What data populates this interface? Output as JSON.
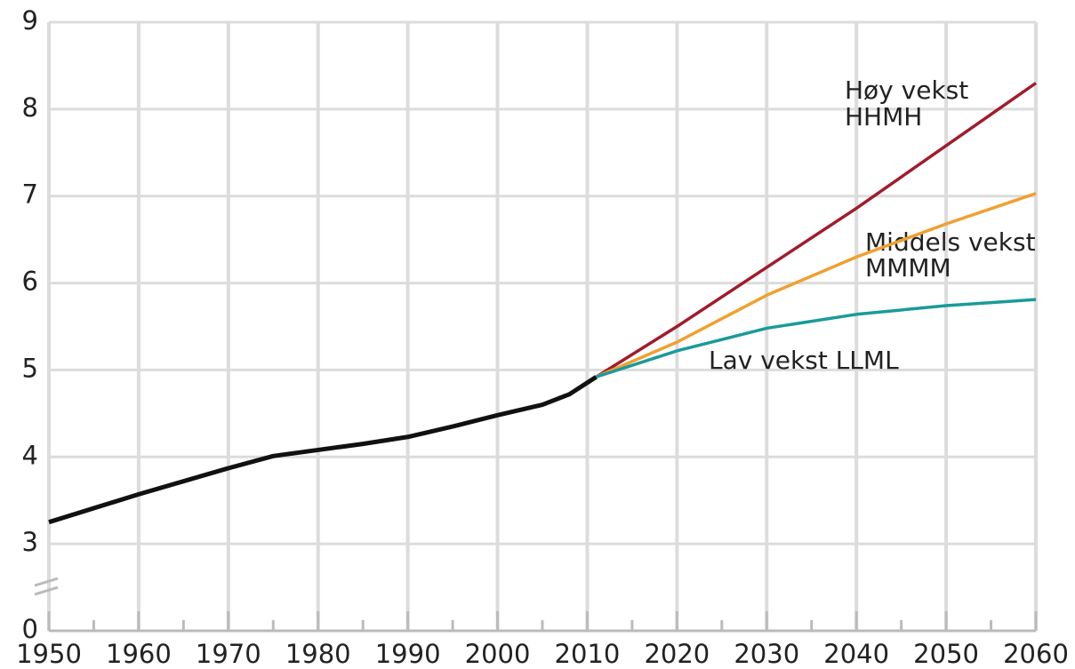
{
  "chart_data": {
    "type": "line",
    "xlim": [
      1950,
      2060
    ],
    "xticks": [
      1950,
      1960,
      1970,
      1980,
      1990,
      2000,
      2010,
      2020,
      2030,
      2040,
      2050,
      2060
    ],
    "xticks_minor": [
      1955,
      1965,
      1975,
      1985,
      1995,
      2005,
      2015,
      2025,
      2035,
      2045,
      2055
    ],
    "ylim": [
      0,
      9
    ],
    "y_break": [
      0,
      3
    ],
    "yticks": [
      0,
      3,
      4,
      5,
      6,
      7,
      8,
      9
    ],
    "grid": true,
    "series": [
      {
        "color": "#111111",
        "x": [
          1950,
          1960,
          1970,
          1975,
          1980,
          1985,
          1990,
          1995,
          2000,
          2005,
          2008,
          2011
        ],
        "values": [
          3.25,
          3.57,
          3.87,
          4.01,
          4.08,
          4.15,
          4.23,
          4.35,
          4.48,
          4.6,
          4.72,
          4.92
        ]
      },
      {
        "color": "#a01c2c",
        "x": [
          2011,
          2020,
          2030,
          2040,
          2050,
          2060
        ],
        "values": [
          4.92,
          5.5,
          6.18,
          6.86,
          7.58,
          8.3
        ]
      },
      {
        "color": "#f0a030",
        "x": [
          2011,
          2020,
          2030,
          2040,
          2050,
          2060
        ],
        "values": [
          4.92,
          5.32,
          5.86,
          6.3,
          6.68,
          7.03
        ]
      },
      {
        "color": "#1a9a9a",
        "x": [
          2011,
          2020,
          2030,
          2040,
          2050,
          2060
        ],
        "values": [
          4.92,
          5.22,
          5.48,
          5.64,
          5.74,
          5.81
        ]
      }
    ],
    "annotations": [
      "Høy vekst",
      "HHMH",
      "Middels vekst",
      "MMMM",
      "Lav vekst LLML"
    ]
  }
}
